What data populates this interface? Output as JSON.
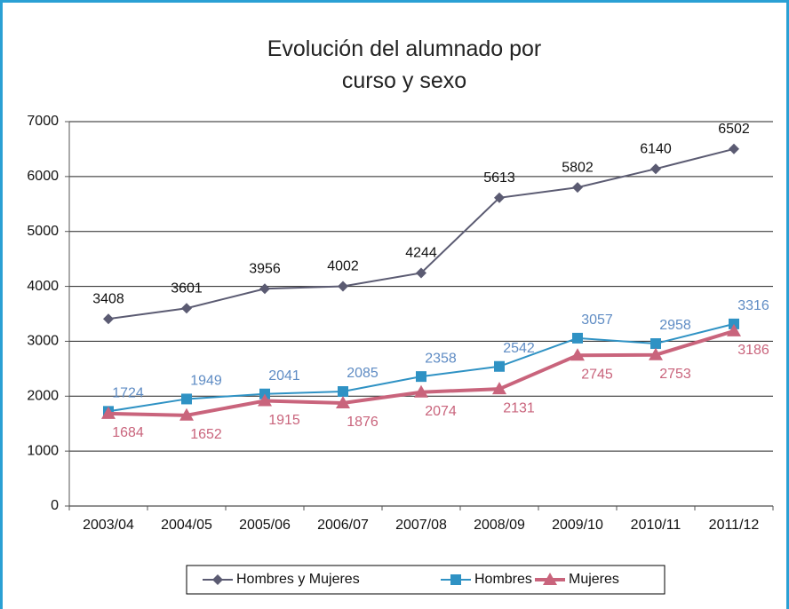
{
  "chart_data": {
    "type": "line",
    "title": "Evolución del alumnado por curso y sexo",
    "categories": [
      "2003/04",
      "2004/05",
      "2005/06",
      "2006/07",
      "2007/08",
      "2008/09",
      "2009/10",
      "2010/11",
      "2011/12"
    ],
    "series": [
      {
        "name": "Hombres y Mujeres",
        "color": "#5b5b72",
        "marker": "diamond",
        "values": [
          3408,
          3601,
          3956,
          4002,
          4244,
          5613,
          5802,
          6140,
          6502
        ]
      },
      {
        "name": "Hombres",
        "color": "#2f92c4",
        "marker": "square",
        "values": [
          1724,
          1949,
          2041,
          2085,
          2358,
          2542,
          3057,
          2958,
          3316
        ]
      },
      {
        "name": "Mujeres",
        "color": "#c9647c",
        "marker": "triangle",
        "values": [
          1684,
          1652,
          1915,
          1876,
          2074,
          2131,
          2745,
          2753,
          3186
        ]
      }
    ],
    "ylim": [
      0,
      7000
    ],
    "yticks": [
      0,
      1000,
      2000,
      3000,
      4000,
      5000,
      6000,
      7000
    ],
    "grid": true,
    "legend": "bottom"
  }
}
